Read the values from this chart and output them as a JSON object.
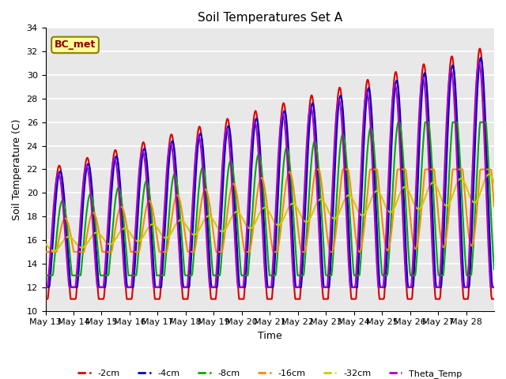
{
  "title": "Soil Temperatures Set A",
  "xlabel": "Time",
  "ylabel": "Soil Temperature (C)",
  "ylim": [
    10,
    34
  ],
  "n_days": 16,
  "background_color": "#e8e8e8",
  "grid_color": "white",
  "annotation_text": "BC_met",
  "annotation_bg": "#ffff99",
  "annotation_border": "#8B8000",
  "series": {
    "-2cm": {
      "color": "#dd0000",
      "lw": 1.5
    },
    "-4cm": {
      "color": "#0000cc",
      "lw": 1.5
    },
    "-8cm": {
      "color": "#00aa00",
      "lw": 1.5
    },
    "-16cm": {
      "color": "#ff8800",
      "lw": 1.5
    },
    "-32cm": {
      "color": "#cccc00",
      "lw": 1.5
    },
    "Theta_Temp": {
      "color": "#aa00cc",
      "lw": 1.5
    }
  },
  "x_tick_labels": [
    "May 13",
    "May 14",
    "May 15",
    "May 16",
    "May 17",
    "May 18",
    "May 19",
    "May 20",
    "May 21",
    "May 22",
    "May 23",
    "May 24",
    "May 25",
    "May 26",
    "May 27",
    "May 28"
  ],
  "legend_labels": [
    "-2cm",
    "-4cm",
    "-8cm",
    "-16cm",
    "-32cm",
    "Theta_Temp"
  ]
}
